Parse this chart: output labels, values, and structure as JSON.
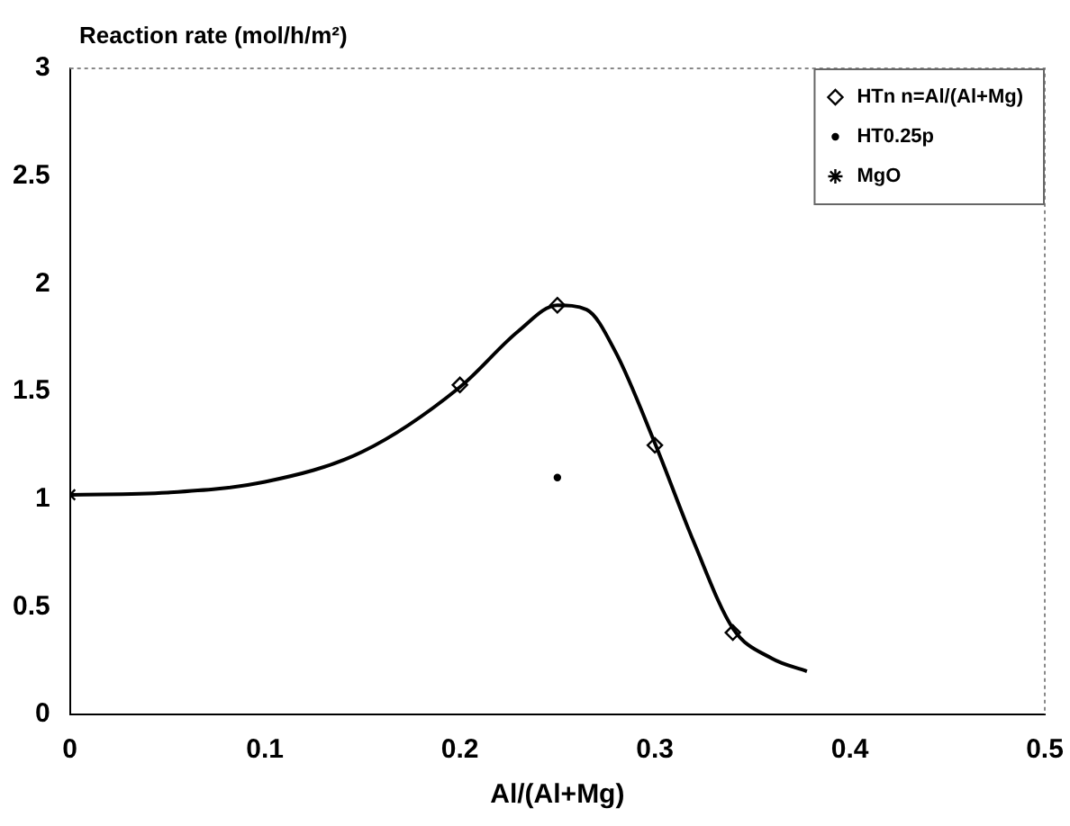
{
  "chart_data": {
    "type": "scatter",
    "xlabel": "Al/(Al+Mg)",
    "ylabel": "Reaction rate (mol/h/m²)",
    "xlim": [
      0,
      0.5
    ],
    "xticks": [
      0,
      0.1,
      0.2,
      0.3,
      0.4,
      0.5
    ],
    "ylim": [
      0,
      3
    ],
    "yticks": [
      0,
      0.5,
      1,
      1.5,
      2,
      2.5,
      3
    ],
    "grid": false,
    "legend": "top right",
    "series": [
      {
        "type": "line",
        "color": "#000000",
        "marker": "none",
        "line_style": "solid",
        "x": [
          0,
          0.05,
          0.1,
          0.15,
          0.2,
          0.23,
          0.25,
          0.265,
          0.28,
          0.3,
          0.32,
          0.34,
          0.36,
          0.378
        ],
        "values": [
          1.02,
          1.03,
          1.08,
          1.22,
          1.52,
          1.78,
          1.9,
          1.88,
          1.68,
          1.26,
          0.8,
          0.4,
          0.26,
          0.2
        ]
      },
      {
        "name": "HTn n=Al/(Al+Mg)",
        "color": "#000000",
        "marker": "diamond",
        "x": [
          0.2,
          0.25,
          0.3,
          0.34
        ],
        "values": [
          1.53,
          1.9,
          1.25,
          0.38
        ]
      },
      {
        "name": "HT0.25p",
        "color": "#000000",
        "marker": "circle",
        "x": [
          0.25
        ],
        "values": [
          1.1
        ]
      },
      {
        "name": "MgO",
        "color": "#000000",
        "marker": "cross",
        "x": [
          0
        ],
        "values": [
          1.02
        ]
      }
    ]
  }
}
